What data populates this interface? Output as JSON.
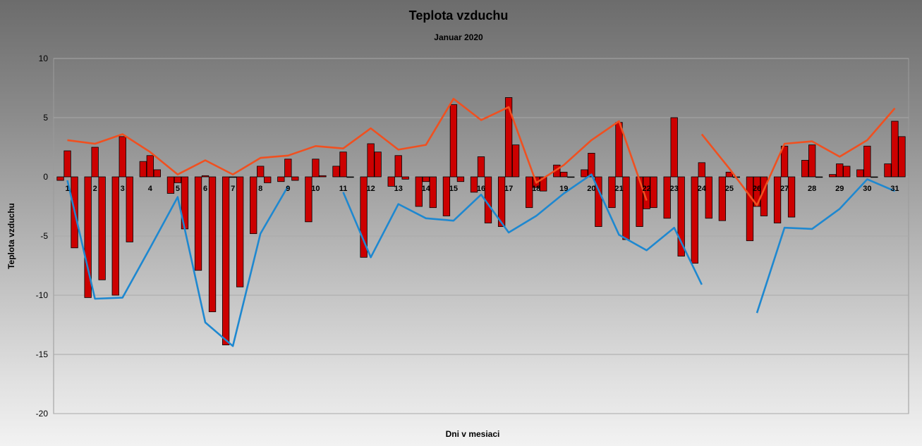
{
  "chart_data": {
    "type": "bar",
    "title": "Teplota vzduchu",
    "subtitle": "Januar 2020",
    "xlabel": "Dni v mesiaci",
    "ylabel": "Teplota vzduchu",
    "ylim": [
      -20,
      10
    ],
    "yticks": [
      10,
      5,
      0,
      -5,
      -10,
      -15,
      -20
    ],
    "grid": true,
    "categories": [
      "1",
      "2",
      "3",
      "4",
      "5",
      "6",
      "7",
      "8",
      "9",
      "10",
      "11",
      "12",
      "13",
      "14",
      "15",
      "16",
      "17",
      "18",
      "19",
      "20",
      "21",
      "22",
      "23",
      "24",
      "25",
      "26",
      "27",
      "28",
      "29",
      "30",
      "31"
    ],
    "bar_series": [
      {
        "values": [
          -0.3,
          -10.2,
          -10.0,
          1.3,
          -1.4,
          -7.9,
          -14.2,
          -4.8,
          -0.4,
          -3.8,
          0.9,
          -6.8,
          -0.8,
          -2.5,
          -3.3,
          -1.3,
          -4.2,
          -2.6,
          1.0,
          0.6,
          -2.6,
          -4.2,
          -3.5,
          -7.3,
          -3.7,
          -5.4,
          -3.9,
          1.4,
          0.2,
          0.6,
          1.1
        ],
        "color": "#cc0000"
      },
      {
        "values": [
          2.2,
          2.5,
          3.4,
          1.8,
          -0.5,
          0.1,
          0.0,
          0.9,
          1.5,
          1.5,
          2.1,
          2.8,
          1.8,
          -0.4,
          6.1,
          1.7,
          6.7,
          -0.9,
          0.4,
          2.0,
          4.6,
          -2.7,
          5.0,
          1.2,
          0.4,
          -2.5,
          2.6,
          2.7,
          1.1,
          2.6,
          4.7
        ],
        "color": "#cc0000"
      },
      {
        "values": [
          -6.0,
          -8.7,
          -5.5,
          0.6,
          -4.4,
          -11.4,
          -9.3,
          -0.5,
          -0.3,
          0.1,
          0.0,
          2.1,
          -0.2,
          -2.6,
          -0.4,
          -3.9,
          2.7,
          -1.2,
          0.0,
          -4.2,
          -5.3,
          -2.6,
          -6.7,
          -3.5,
          0.0,
          -3.3,
          -3.4,
          0.0,
          0.9,
          0.0,
          3.4
        ],
        "color": "#cc0000"
      }
    ],
    "line_series": [
      {
        "values": [
          3.1,
          2.8,
          3.6,
          2.1,
          0.2,
          1.4,
          0.2,
          1.6,
          1.8,
          2.6,
          2.4,
          4.1,
          2.3,
          2.7,
          6.6,
          4.8,
          5.9,
          -0.5,
          1.0,
          3.1,
          4.7,
          -2.0,
          null,
          3.6,
          0.7,
          -2.4,
          2.8,
          3.0,
          1.7,
          3.1,
          5.8
        ],
        "color": "#f05020"
      },
      {
        "values": [
          -0.3,
          -10.3,
          -10.2,
          -6.0,
          -1.7,
          -12.3,
          -14.3,
          -4.8,
          -0.8,
          null,
          -1.3,
          -6.8,
          -2.3,
          -3.5,
          -3.7,
          -1.5,
          -4.7,
          -3.3,
          -1.4,
          0.2,
          -4.9,
          -6.2,
          -4.3,
          -9.1,
          null,
          -11.5,
          -4.3,
          -4.4,
          -2.7,
          -0.2,
          -1.2
        ],
        "color": "#1e88d0"
      }
    ]
  }
}
